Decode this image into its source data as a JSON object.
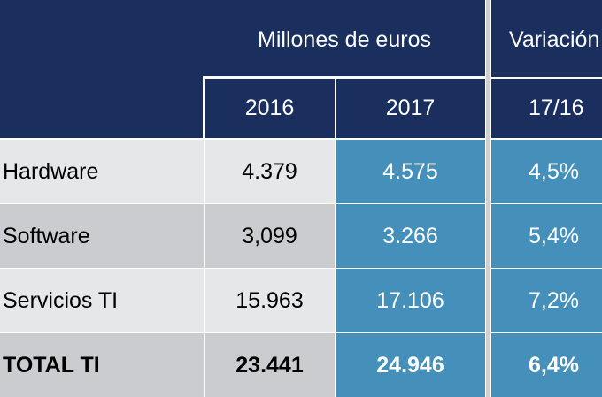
{
  "header": {
    "group_label": "Millones de euros",
    "variation_label": "Variación",
    "years": [
      "2016",
      "2017"
    ],
    "period": "17/16"
  },
  "rows": [
    {
      "label": "Hardware",
      "v2016": "4.379",
      "v2017": "4.575",
      "var": "4,5%"
    },
    {
      "label": "Software",
      "v2016": "3,099",
      "v2017": "3.266",
      "var": "5,4%"
    },
    {
      "label": "Servicios TI",
      "v2016": "15.963",
      "v2017": "17.106",
      "var": "7,2%"
    },
    {
      "label": "TOTAL TI",
      "v2016": "23.441",
      "v2017": "24.946",
      "var": "6,4%"
    }
  ],
  "colors": {
    "navy": "#1b2f5f",
    "blue": "#4590ba",
    "grey_light": "#e6e7e9",
    "grey_dark": "#cbccd0"
  }
}
